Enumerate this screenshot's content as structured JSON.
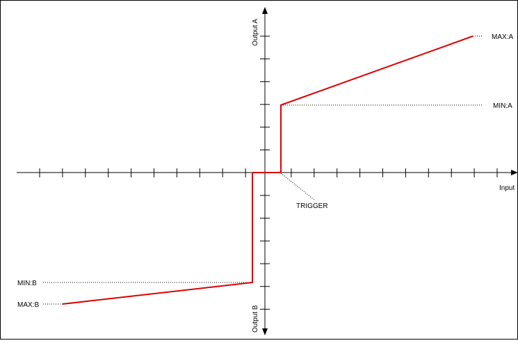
{
  "diagram": {
    "labels": {
      "output_a": "Output A",
      "output_b": "Output B",
      "input": "Input",
      "trigger": "TRIGGER",
      "max_a": "MAX:A",
      "min_a": "MIN:A",
      "min_b": "MIN:B",
      "max_b": "MAX:B"
    },
    "colors": {
      "curve": "#dd0000",
      "axis": "#000000",
      "border": "#000000",
      "background": "#ffffff"
    }
  }
}
